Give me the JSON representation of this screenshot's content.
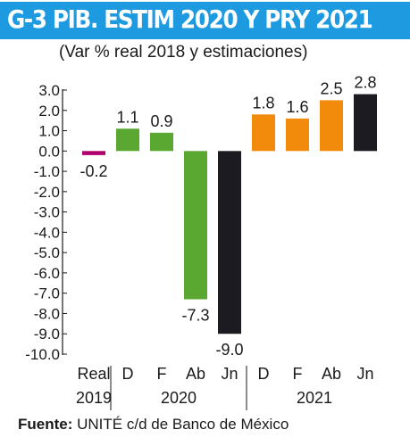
{
  "header": {
    "title": "G-3 PIB. ESTIM 2020 Y PRY 2021",
    "subtitle": "(Var % real 2018 y estimaciones)"
  },
  "footer": {
    "source_label": "Fuente:",
    "source_text": "UNITÉ c/d de Banco de México"
  },
  "colors": {
    "title_bg": "#1e9be0",
    "real": "#b0006e",
    "estimate_2020": "#5aa832",
    "projection_2021": "#f28a0c",
    "june": "#1c1b22"
  },
  "chart_data": {
    "type": "bar",
    "title": "G-3 PIB. ESTIM 2020 Y PRY 2021",
    "subtitle": "(Var % real 2018 y estimaciones)",
    "ylim": [
      -10.0,
      3.0
    ],
    "yticks": [
      "3.0",
      "2.0",
      "1.0",
      "0.0",
      "-1.0",
      "-2.0",
      "-3.0",
      "-4.0",
      "-5.0",
      "-6.0",
      "-7.0",
      "-8.0",
      "-9.0",
      "-10.0"
    ],
    "categories": [
      "Real",
      "D",
      "F",
      "Ab",
      "Jn",
      "D",
      "F",
      "Ab",
      "Jn"
    ],
    "values": [
      -0.2,
      1.1,
      0.9,
      -7.3,
      -9.0,
      1.8,
      1.6,
      2.5,
      2.8
    ],
    "value_labels": [
      "-0.2",
      "1.1",
      "0.9",
      "-7.3",
      "-9.0",
      "1.8",
      "1.6",
      "2.5",
      "2.8"
    ],
    "bar_colors": [
      "#b0006e",
      "#5aa832",
      "#5aa832",
      "#5aa832",
      "#1c1b22",
      "#f28a0c",
      "#f28a0c",
      "#f28a0c",
      "#1c1b22"
    ],
    "groups": [
      {
        "label": "2019",
        "start": 0,
        "end": 0
      },
      {
        "label": "2020",
        "start": 1,
        "end": 4
      },
      {
        "label": "2021",
        "start": 5,
        "end": 8
      }
    ],
    "grid": false
  }
}
